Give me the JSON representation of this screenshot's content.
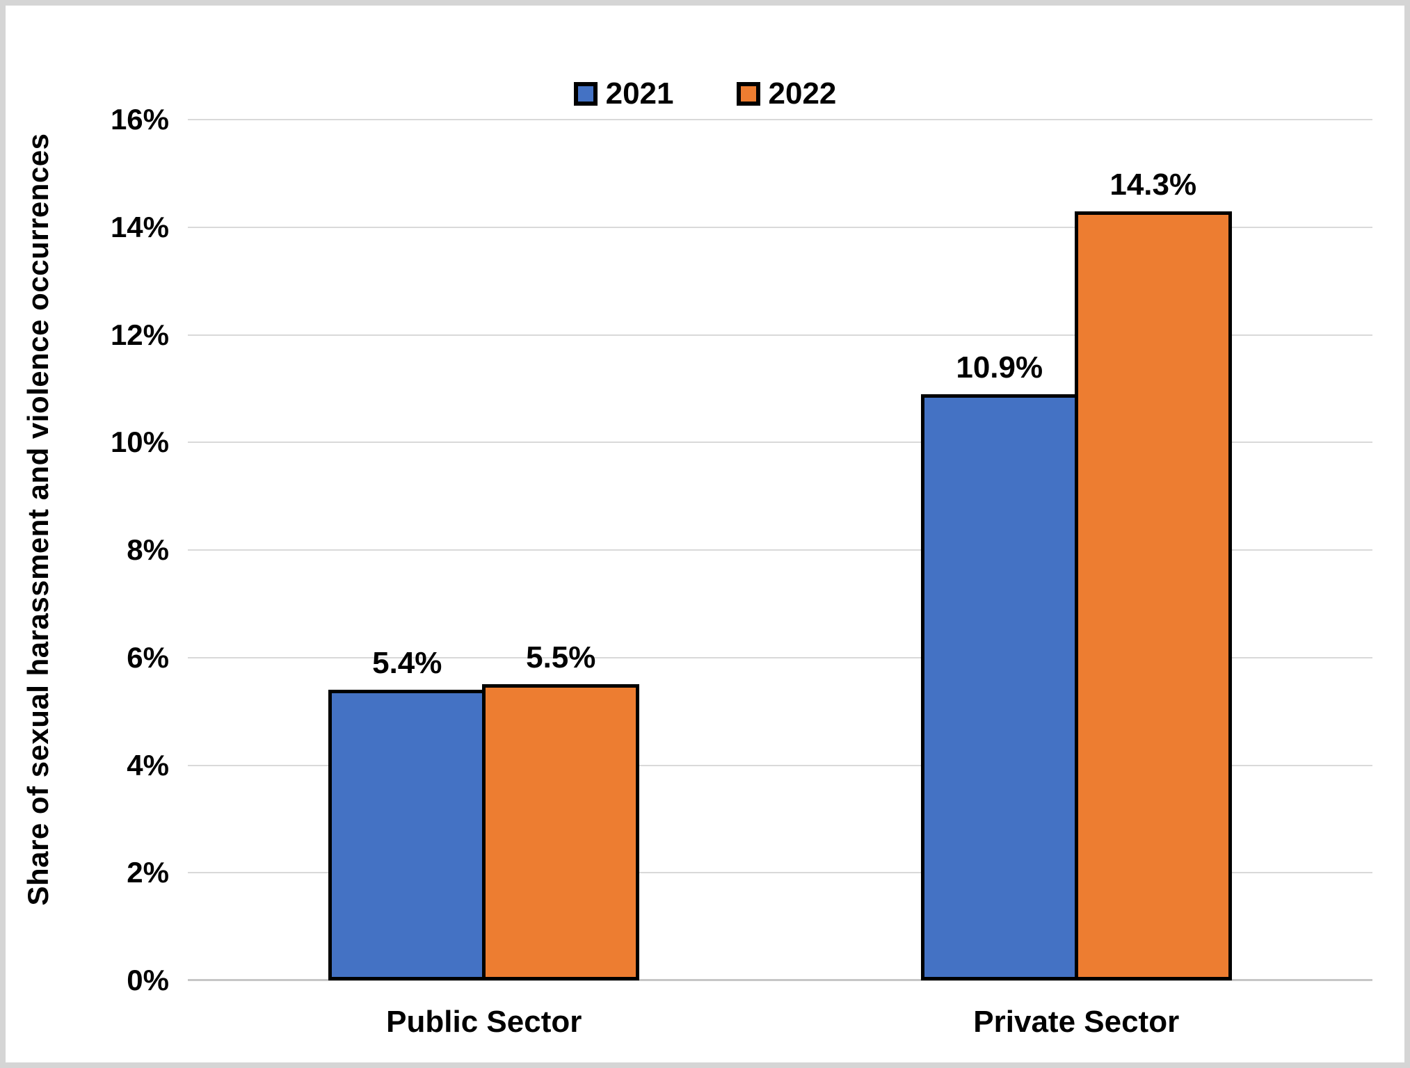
{
  "chart_data": {
    "type": "bar",
    "ylabel": "Share of sexual harassment and violence occurrences",
    "categories": [
      "Public Sector",
      "Private Sector"
    ],
    "series": [
      {
        "name": "2021",
        "color": "#4472C4",
        "values": [
          5.4,
          10.9
        ],
        "labels": [
          "5.4%",
          "10.9%"
        ]
      },
      {
        "name": "2022",
        "color": "#ED7D31",
        "values": [
          5.5,
          14.3
        ],
        "labels": [
          "5.5%",
          "14.3%"
        ]
      }
    ],
    "ylim": [
      0,
      16
    ],
    "yticks": [
      "0%",
      "2%",
      "4%",
      "6%",
      "8%",
      "10%",
      "12%",
      "14%",
      "16%"
    ],
    "grid": true,
    "legend_position": "top-center",
    "gridline_color": "#d9d9d9",
    "axis_line_color": "#c6c6c6",
    "bar_border_color": "#000000",
    "frame_color": "#d5d5d5"
  }
}
